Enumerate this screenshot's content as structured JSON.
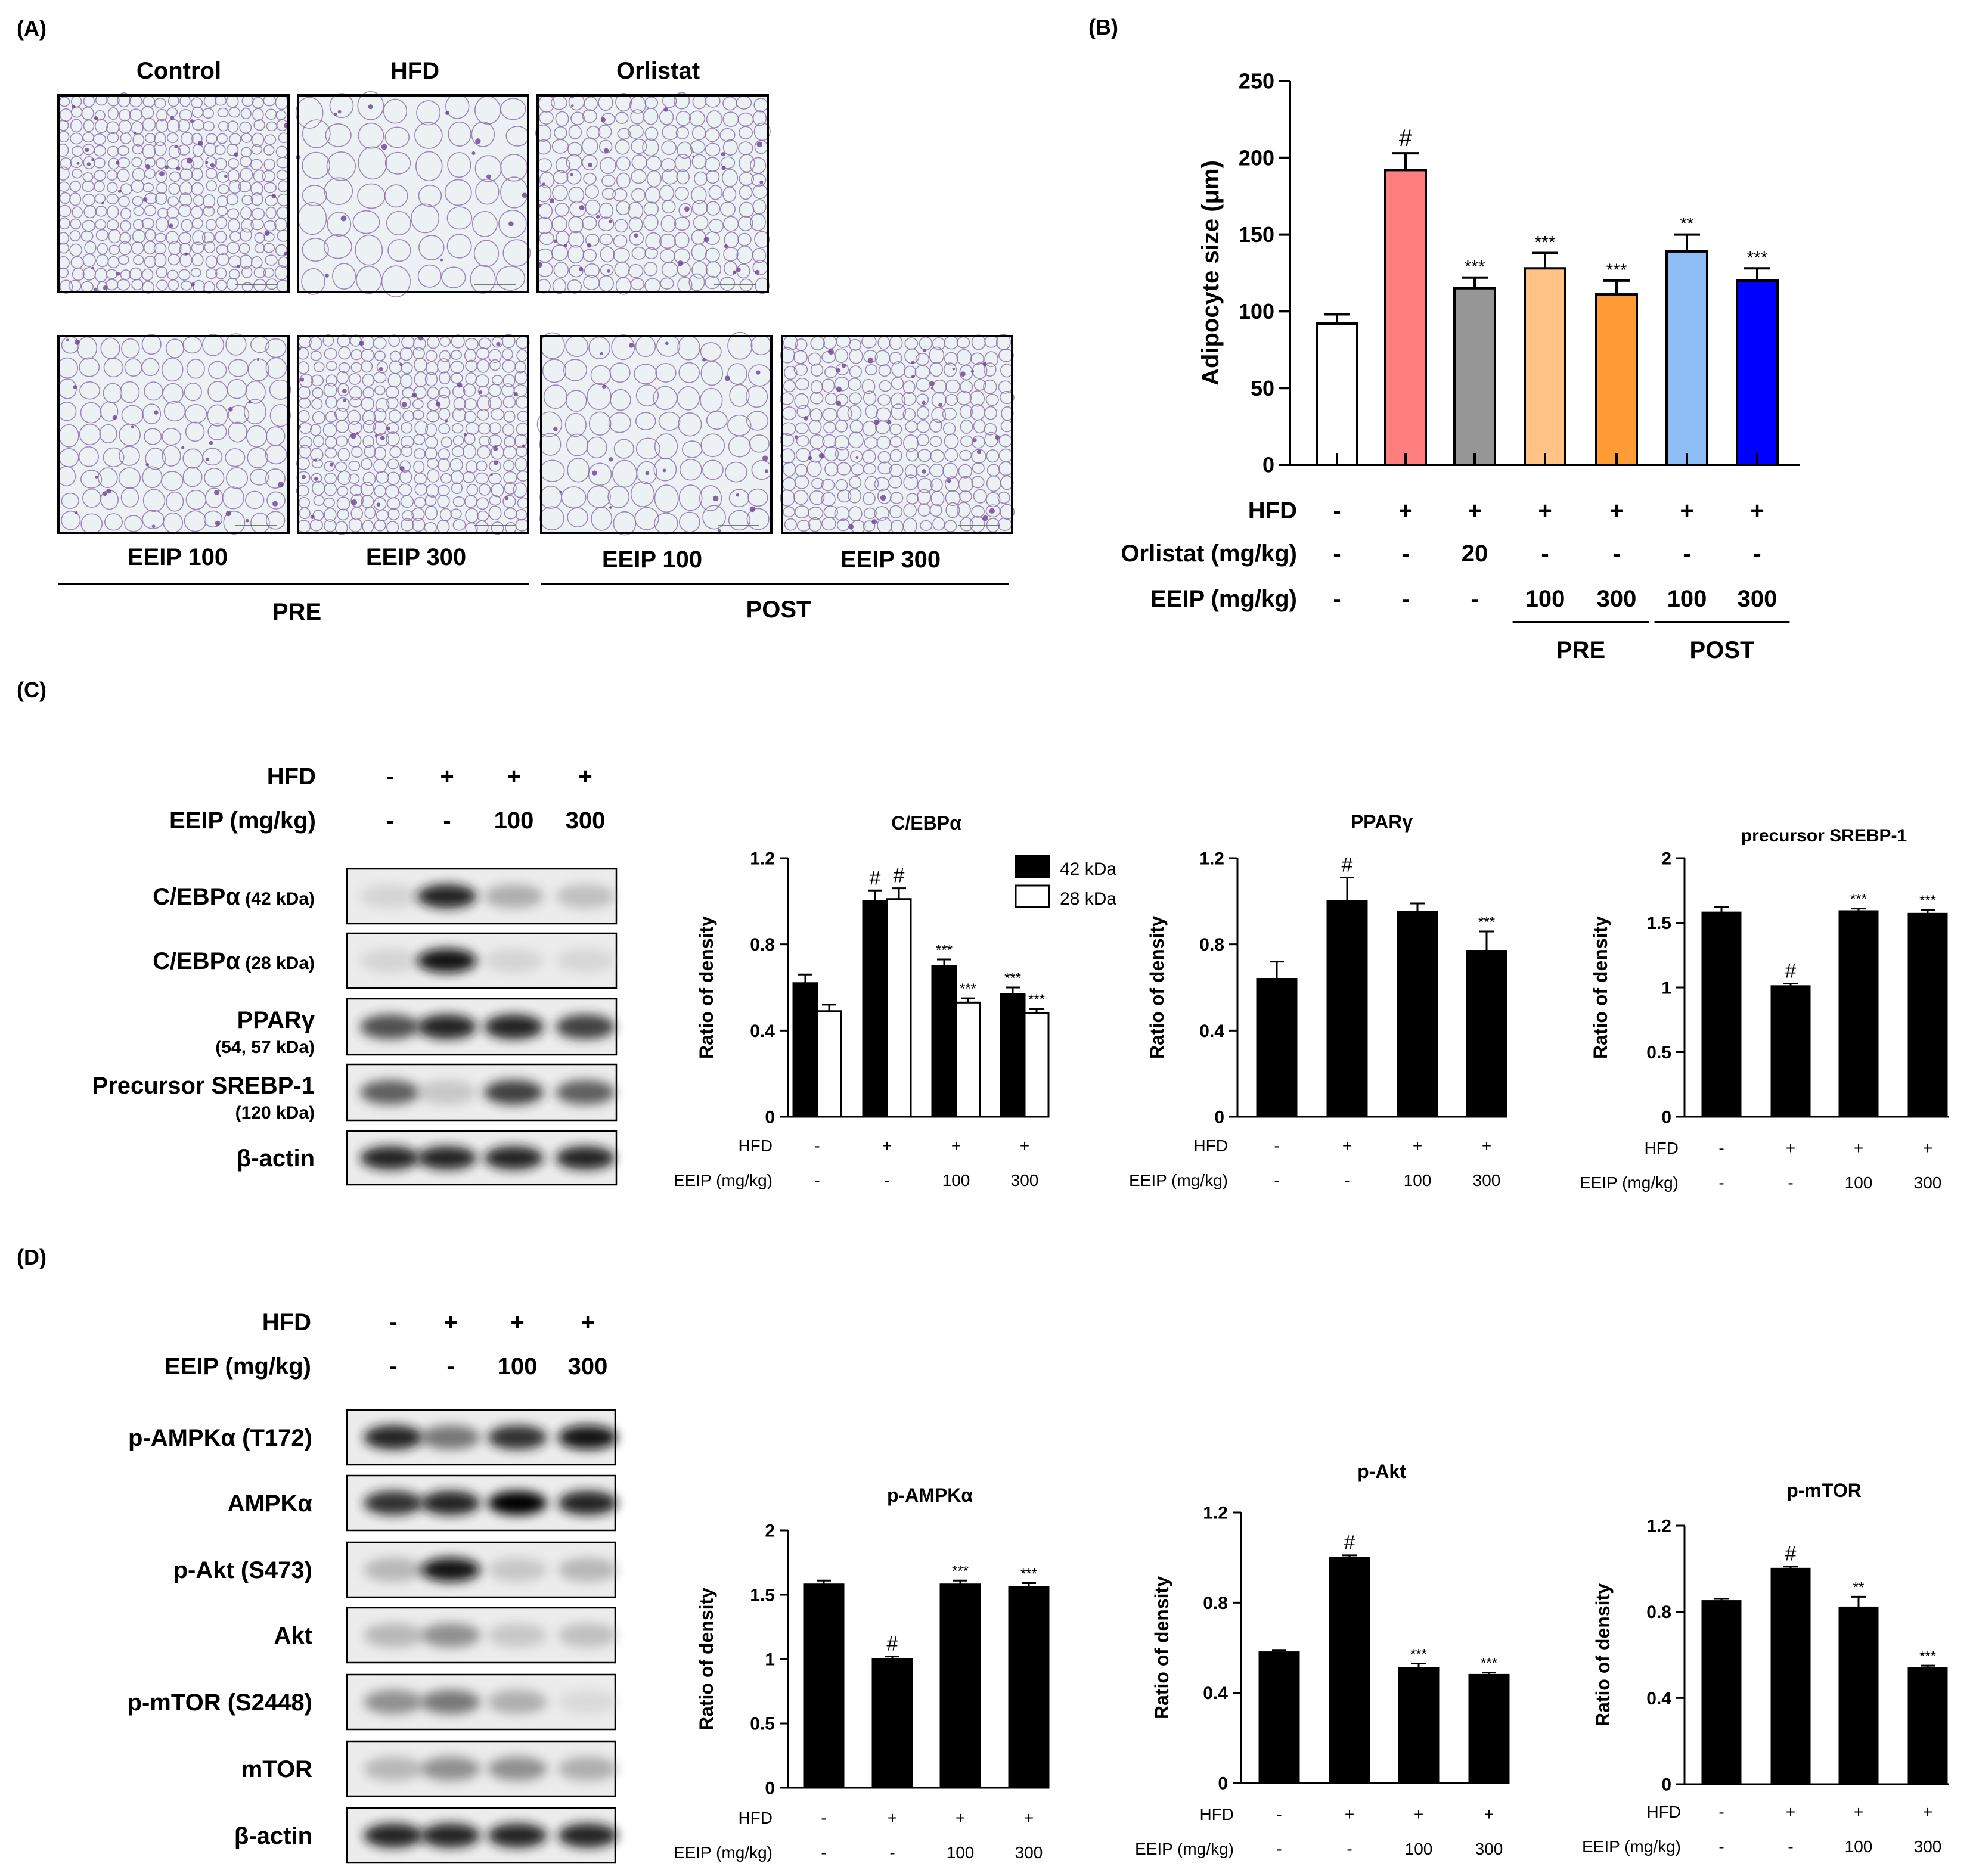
{
  "panels": {
    "A": {
      "letter": "(A)",
      "top_labels": [
        "Control",
        "HFD",
        "Orlistat"
      ],
      "bottom_labels": [
        "EEIP 100",
        "EEIP 300",
        "EEIP 100",
        "EEIP 300"
      ],
      "groups": [
        "PRE",
        "POST"
      ],
      "images": [
        {
          "name": "control",
          "density": 0.92
        },
        {
          "name": "hfd",
          "density": 0.35
        },
        {
          "name": "orlistat",
          "density": 0.8
        },
        {
          "name": "pre-eeip-100",
          "density": 0.6
        },
        {
          "name": "pre-eeip-300",
          "density": 0.9
        },
        {
          "name": "post-eeip-100",
          "density": 0.5
        },
        {
          "name": "post-eeip-300",
          "density": 0.85
        }
      ]
    },
    "B": {
      "letter": "(B)"
    },
    "C": {
      "letter": "(C)",
      "blot_header": {
        "rows": [
          {
            "label": "HFD",
            "values": [
              "-",
              "+",
              "+",
              "+"
            ]
          },
          {
            "label": "EEIP (mg/kg)",
            "values": [
              "-",
              "-",
              "100",
              "300"
            ]
          }
        ]
      },
      "blot_rows": [
        {
          "label": "C/EBPα",
          "sub": "(42 kDa)",
          "sub_below": false
        },
        {
          "label": "C/EBPα",
          "sub": "(28 kDa)",
          "sub_below": false
        },
        {
          "label": "PPARγ",
          "sub": "(54, 57 kDa)",
          "sub_below": true
        },
        {
          "label": "Precursor SREBP-1",
          "sub": "(120 kDa)",
          "sub_below": true
        },
        {
          "label": "β-actin",
          "sub": "",
          "sub_below": false
        }
      ],
      "band_intensity": [
        [
          0.1,
          0.9,
          0.35,
          0.25
        ],
        [
          0.1,
          0.95,
          0.1,
          0.08
        ],
        [
          0.75,
          0.9,
          0.9,
          0.8
        ],
        [
          0.7,
          0.2,
          0.8,
          0.7
        ],
        [
          0.9,
          0.9,
          0.9,
          0.9
        ]
      ]
    },
    "D": {
      "letter": "(D)",
      "blot_header": {
        "rows": [
          {
            "label": "HFD",
            "values": [
              "-",
              "+",
              "+",
              "+"
            ]
          },
          {
            "label": "EEIP (mg/kg)",
            "values": [
              "-",
              "-",
              "100",
              "300"
            ]
          }
        ]
      },
      "blot_rows": [
        {
          "label": "p-AMPKα (T172)"
        },
        {
          "label": "AMPKα"
        },
        {
          "label": "p-Akt (S473)"
        },
        {
          "label": "Akt"
        },
        {
          "label": "p-mTOR (S2448)"
        },
        {
          "label": "mTOR"
        },
        {
          "label": "β-actin"
        }
      ],
      "band_intensity": [
        [
          0.9,
          0.6,
          0.85,
          0.95
        ],
        [
          0.85,
          0.9,
          1.0,
          0.9
        ],
        [
          0.3,
          0.95,
          0.2,
          0.3
        ],
        [
          0.3,
          0.5,
          0.2,
          0.25
        ],
        [
          0.5,
          0.6,
          0.35,
          0.05
        ],
        [
          0.3,
          0.5,
          0.5,
          0.35
        ],
        [
          0.9,
          0.9,
          0.9,
          0.9
        ]
      ]
    }
  },
  "chart_data": [
    {
      "id": "B",
      "type": "bar",
      "title": "",
      "ylabel": "Adipocyte size (μm)",
      "ylim": [
        0,
        250
      ],
      "yticks": [
        0,
        50,
        100,
        150,
        200,
        250
      ],
      "values": [
        92,
        192,
        115,
        128,
        111,
        139,
        120
      ],
      "errors": [
        6,
        11,
        7,
        10,
        9,
        11,
        8
      ],
      "annotations": [
        "",
        "#",
        "***",
        "***",
        "***",
        "**",
        "***"
      ],
      "colors": [
        "#ffffff",
        "#ff7f7f",
        "#969696",
        "#ffc485",
        "#ff9c36",
        "#8fbdf5",
        "#0000ff"
      ],
      "conditions": [
        {
          "label": "HFD",
          "values": [
            "-",
            "+",
            "+",
            "+",
            "+",
            "+",
            "+"
          ]
        },
        {
          "label": "Orlistat (mg/kg)",
          "values": [
            "-",
            "-",
            "20",
            "-",
            "-",
            "-",
            "-"
          ]
        },
        {
          "label": "EEIP (mg/kg)",
          "values": [
            "-",
            "-",
            "-",
            "100",
            "300",
            "100",
            "300"
          ]
        }
      ],
      "groups": [
        {
          "label": "PRE",
          "from": 3,
          "to": 4
        },
        {
          "label": "POST",
          "from": 5,
          "to": 6
        }
      ]
    },
    {
      "id": "C1",
      "type": "bar",
      "title": "C/EBPα",
      "ylabel": "Ratio of density",
      "ylim": [
        0,
        1.2
      ],
      "yticks": [
        0,
        0.4,
        0.8,
        1.2
      ],
      "ytick_labels": [
        "0",
        "0.4",
        "0.8",
        "1.2"
      ],
      "series": [
        {
          "name": "42 kDa",
          "values": [
            0.62,
            1.0,
            0.7,
            0.57
          ],
          "errors": [
            0.04,
            0.05,
            0.03,
            0.03
          ],
          "annotations": [
            "",
            "#",
            "***",
            "***"
          ],
          "color": "#000000"
        },
        {
          "name": "28 kDa",
          "values": [
            0.49,
            1.01,
            0.53,
            0.48
          ],
          "errors": [
            0.03,
            0.05,
            0.02,
            0.02
          ],
          "annotations": [
            "",
            "#",
            "***",
            "***"
          ],
          "color": "#ffffff"
        }
      ],
      "legend_position": "top-right",
      "conditions": [
        {
          "label": "HFD",
          "values": [
            "-",
            "+",
            "+",
            "+"
          ]
        },
        {
          "label": "EEIP  (mg/kg)",
          "values": [
            "-",
            "-",
            "100",
            "300"
          ]
        }
      ]
    },
    {
      "id": "C2",
      "type": "bar",
      "title": "PPARγ",
      "ylabel": "Ratio of density",
      "ylim": [
        0,
        1.2
      ],
      "yticks": [
        0,
        0.4,
        0.8,
        1.2
      ],
      "ytick_labels": [
        "0",
        "0.4",
        "0.8",
        "1.2"
      ],
      "series": [
        {
          "name": "",
          "values": [
            0.64,
            1.0,
            0.95,
            0.77
          ],
          "errors": [
            0.08,
            0.11,
            0.04,
            0.09
          ],
          "annotations": [
            "",
            "#",
            "",
            "***"
          ],
          "color": "#000000"
        }
      ],
      "conditions": [
        {
          "label": "HFD",
          "values": [
            "-",
            "+",
            "+",
            "+"
          ]
        },
        {
          "label": "EEIP  (mg/kg)",
          "values": [
            "-",
            "-",
            "100",
            "300"
          ]
        }
      ]
    },
    {
      "id": "C3",
      "type": "bar",
      "title": "precursor SREBP-1",
      "ylabel": "Ratio of density",
      "ylim": [
        0,
        2
      ],
      "yticks": [
        0,
        0.5,
        1,
        1.5,
        2
      ],
      "ytick_labels": [
        "0",
        "0.5",
        "1",
        "1.5",
        "2"
      ],
      "series": [
        {
          "name": "",
          "values": [
            1.58,
            1.01,
            1.59,
            1.57
          ],
          "errors": [
            0.04,
            0.02,
            0.02,
            0.03
          ],
          "annotations": [
            "",
            "#",
            "***",
            "***"
          ],
          "color": "#000000"
        }
      ],
      "conditions": [
        {
          "label": "HFD",
          "values": [
            "-",
            "+",
            "+",
            "+"
          ]
        },
        {
          "label": "EEIP  (mg/kg)",
          "values": [
            "-",
            "-",
            "100",
            "300"
          ]
        }
      ]
    },
    {
      "id": "D1",
      "type": "bar",
      "title": "p-AMPKα",
      "ylabel": "Ratio of density",
      "ylim": [
        0,
        2
      ],
      "yticks": [
        0,
        0.5,
        1,
        1.5,
        2
      ],
      "ytick_labels": [
        "0",
        "0.5",
        "1",
        "1.5",
        "2"
      ],
      "series": [
        {
          "name": "",
          "values": [
            1.58,
            1.0,
            1.58,
            1.56
          ],
          "errors": [
            0.03,
            0.02,
            0.03,
            0.03
          ],
          "annotations": [
            "",
            "#",
            "***",
            "***"
          ],
          "color": "#000000"
        }
      ],
      "conditions": [
        {
          "label": "HFD",
          "values": [
            "-",
            "+",
            "+",
            "+"
          ]
        },
        {
          "label": "EEIP  (mg/kg)",
          "values": [
            "-",
            "-",
            "100",
            "300"
          ]
        }
      ]
    },
    {
      "id": "D2",
      "type": "bar",
      "title": "p-Akt",
      "ylabel": "Ratio of density",
      "ylim": [
        0,
        1.2
      ],
      "yticks": [
        0,
        0.4,
        0.8,
        1.2
      ],
      "ytick_labels": [
        "0",
        "0.4",
        "0.8",
        "1.2"
      ],
      "series": [
        {
          "name": "",
          "values": [
            0.58,
            1.0,
            0.51,
            0.48
          ],
          "errors": [
            0.01,
            0.01,
            0.02,
            0.01
          ],
          "annotations": [
            "",
            "#",
            "***",
            "***"
          ],
          "color": "#000000"
        }
      ],
      "conditions": [
        {
          "label": "HFD",
          "values": [
            "-",
            "+",
            "+",
            "+"
          ]
        },
        {
          "label": "EEIP  (mg/kg)",
          "values": [
            "-",
            "-",
            "100",
            "300"
          ]
        }
      ]
    },
    {
      "id": "D3",
      "type": "bar",
      "title": "p-mTOR",
      "ylabel": "Ratio of density",
      "ylim": [
        0,
        1.2
      ],
      "yticks": [
        0,
        0.4,
        0.8,
        1.2
      ],
      "ytick_labels": [
        "0",
        "0.4",
        "0.8",
        "1.2"
      ],
      "series": [
        {
          "name": "",
          "values": [
            0.85,
            1.0,
            0.82,
            0.54
          ],
          "errors": [
            0.01,
            0.01,
            0.05,
            0.01
          ],
          "annotations": [
            "",
            "#",
            "**",
            "***"
          ],
          "color": "#000000"
        }
      ],
      "conditions": [
        {
          "label": "HFD",
          "values": [
            "-",
            "+",
            "+",
            "+"
          ]
        },
        {
          "label": "EEIP  (mg/kg)",
          "values": [
            "-",
            "-",
            "100",
            "300"
          ]
        }
      ]
    }
  ]
}
